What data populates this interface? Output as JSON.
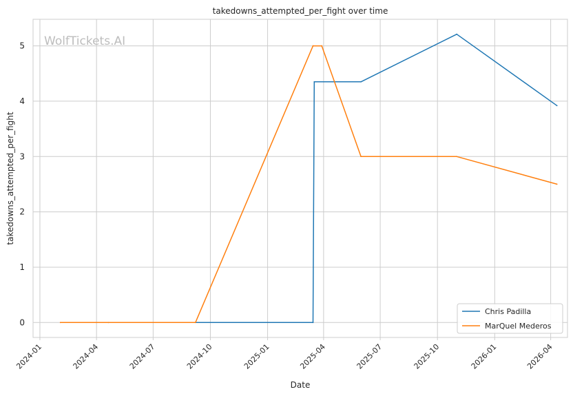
{
  "chart_data": {
    "type": "line",
    "title": "takedowns_attempted_per_fight over time",
    "xlabel": "Date",
    "ylabel": "takedowns_attempted_per_fight",
    "watermark": "WolfTickets.AI",
    "x_ticks": [
      "2024-01",
      "2024-04",
      "2024-07",
      "2024-10",
      "2025-01",
      "2025-04",
      "2025-07",
      "2025-10",
      "2026-01",
      "2026-04"
    ],
    "y_ticks": [
      0,
      1,
      2,
      3,
      4,
      5
    ],
    "xlim": [
      "2023-12-21",
      "2026-04-28"
    ],
    "ylim": [
      -0.27,
      5.48
    ],
    "grid": true,
    "legend_position": "bottom-right",
    "series": [
      {
        "name": "Chris Padilla",
        "color": "#1f77b4",
        "points": [
          {
            "x": "2024-04-20",
            "y": 0
          },
          {
            "x": "2025-03-15",
            "y": 0
          },
          {
            "x": "2025-03-17",
            "y": 4.35
          },
          {
            "x": "2025-05-31",
            "y": 4.35
          },
          {
            "x": "2025-11-01",
            "y": 5.21
          },
          {
            "x": "2026-04-11",
            "y": 3.92
          }
        ]
      },
      {
        "name": "MarQuel Mederos",
        "color": "#ff7f0e",
        "points": [
          {
            "x": "2024-02-03",
            "y": 0
          },
          {
            "x": "2024-09-07",
            "y": 0
          },
          {
            "x": "2025-03-15",
            "y": 5.0
          },
          {
            "x": "2025-03-29",
            "y": 5.0
          },
          {
            "x": "2025-05-31",
            "y": 3.0
          },
          {
            "x": "2025-11-01",
            "y": 3.0
          },
          {
            "x": "2026-04-11",
            "y": 2.5
          }
        ]
      }
    ]
  }
}
